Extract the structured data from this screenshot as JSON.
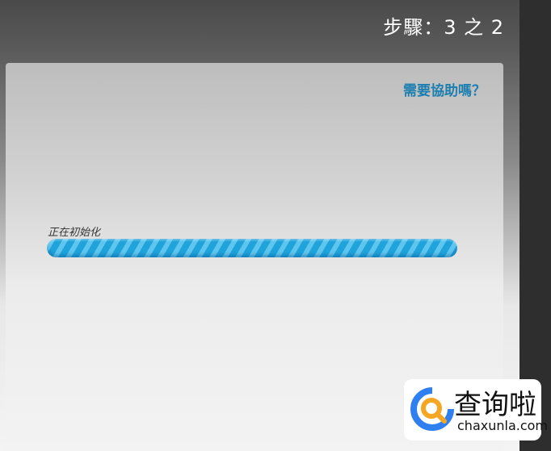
{
  "header": {
    "step_text": "步驟：3 之 2"
  },
  "panel": {
    "help_link": "需要協助嗎？",
    "status_text": "正在初始化",
    "progress": {
      "percent": 100,
      "style": "indeterminate-striped",
      "color": "#1fa3da"
    }
  },
  "watermark": {
    "text_cn": "查询啦",
    "text_en": "chaxunla.com"
  }
}
